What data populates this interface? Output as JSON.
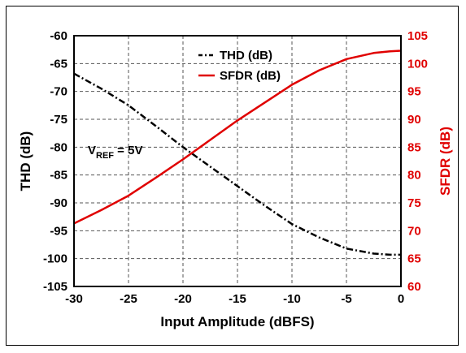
{
  "chart_data": {
    "type": "line",
    "title": "",
    "xlabel": "Input Amplitude (dBFS)",
    "ylabel_left": "THD (dB)",
    "ylabel_right": "SFDR (dB)",
    "xlim": [
      -30,
      0
    ],
    "ylim_left": [
      -105,
      -60
    ],
    "ylim_right": [
      60,
      105
    ],
    "x_ticks": [
      -30,
      -25,
      -20,
      -15,
      -10,
      -5,
      0
    ],
    "y_ticks_left": [
      -60,
      -65,
      -70,
      -75,
      -80,
      -85,
      -90,
      -95,
      -100,
      -105
    ],
    "y_ticks_right": [
      105,
      100,
      95,
      90,
      85,
      80,
      75,
      70,
      65,
      60
    ],
    "grid": true,
    "legend_position": "top-center",
    "annotation": {
      "main": "V",
      "sub": "REF",
      "rest": " = 5V"
    },
    "series": [
      {
        "name": "THD (dB)",
        "axis": "left",
        "color": "#000000",
        "style": "dash-dot",
        "x": [
          -30,
          -27.5,
          -25,
          -22.5,
          -20,
          -17.5,
          -15,
          -12.5,
          -10,
          -7.5,
          -5,
          -2.5,
          -1,
          0
        ],
        "values": [
          -66.8,
          -69.5,
          -72.5,
          -76.2,
          -80.0,
          -83.5,
          -87.0,
          -90.5,
          -93.8,
          -96.2,
          -98.2,
          -99.1,
          -99.3,
          -99.3
        ]
      },
      {
        "name": "SFDR (dB)",
        "axis": "right",
        "color": "#e00000",
        "style": "solid",
        "x": [
          -30,
          -27.5,
          -25,
          -22.5,
          -20,
          -17.5,
          -15,
          -12.5,
          -10,
          -7.5,
          -5,
          -2.5,
          -1,
          0
        ],
        "values": [
          71.3,
          73.7,
          76.3,
          79.5,
          82.8,
          86.3,
          89.8,
          93.0,
          96.2,
          98.8,
          100.8,
          101.9,
          102.2,
          102.3
        ]
      }
    ]
  }
}
